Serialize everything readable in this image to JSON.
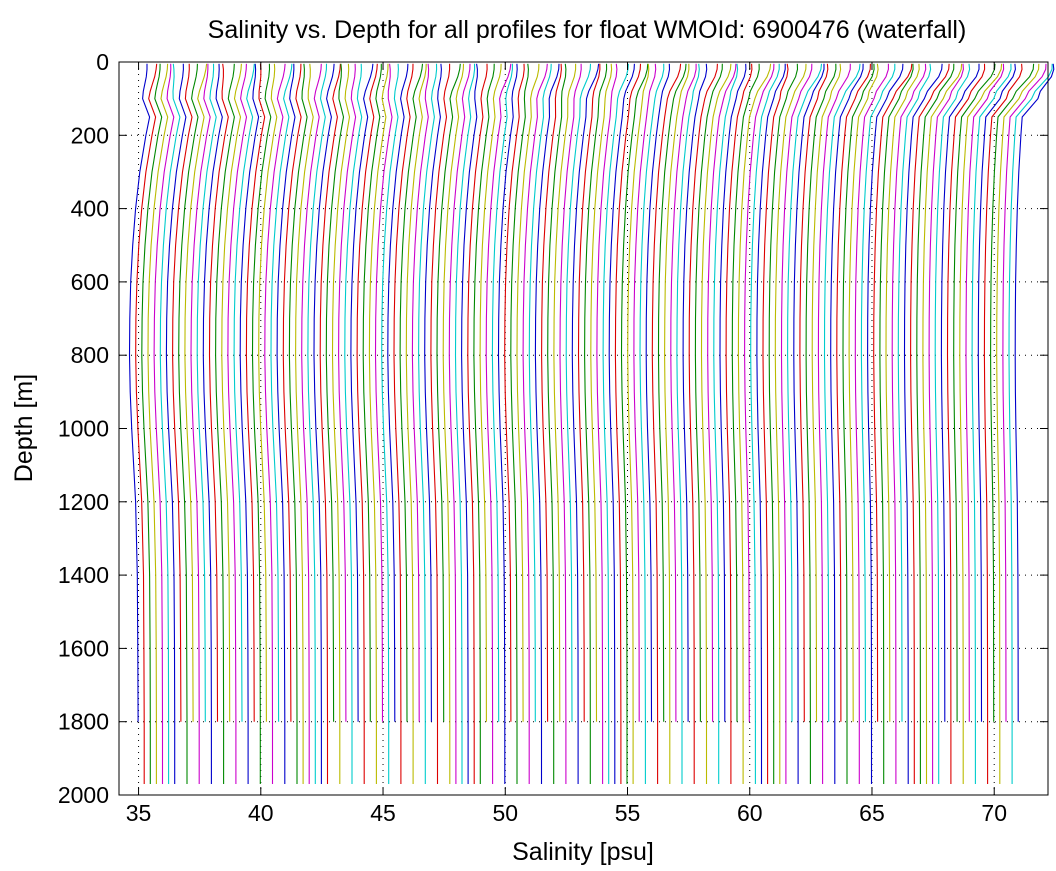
{
  "chart_data": {
    "type": "line",
    "title": "Salinity vs. Depth for all profiles for float WMOId: 6900476 (waterfall)",
    "xlabel": "Salinity [psu]",
    "ylabel": "Depth [m]",
    "xlim": [
      34.2,
      72.2
    ],
    "ylim": [
      0,
      2000
    ],
    "y_reversed": true,
    "x_ticks": [
      35,
      40,
      45,
      50,
      55,
      60,
      65,
      70
    ],
    "y_ticks": [
      0,
      200,
      400,
      600,
      800,
      1000,
      1200,
      1400,
      1600,
      1800,
      2000
    ],
    "grid": true,
    "legend": "none",
    "waterfall": {
      "profile_count": 145,
      "first_profile_offset": 0,
      "offset_step": 0.25,
      "color_cycle": [
        "#0000cc",
        "#dd0000",
        "#008800",
        "#bbbb00",
        "#cc00cc",
        "#00cccc"
      ]
    },
    "base_profile": {
      "depth": [
        5,
        20,
        40,
        60,
        80,
        100,
        150,
        200,
        300,
        400,
        500,
        600,
        700,
        800,
        900,
        1000,
        1200,
        1400,
        1600,
        1800,
        1970
      ],
      "salinity": [
        36.2,
        36.2,
        36.1,
        35.9,
        35.7,
        35.6,
        35.45,
        35.3,
        35.05,
        34.88,
        34.76,
        34.68,
        34.64,
        34.63,
        34.66,
        34.72,
        34.88,
        34.95,
        34.97,
        34.98,
        34.98
      ]
    }
  }
}
